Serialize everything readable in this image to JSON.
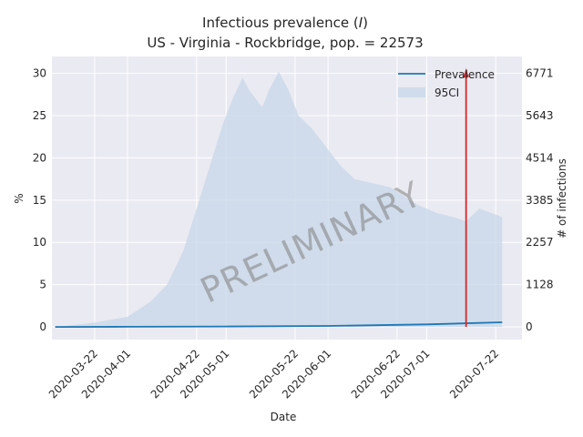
{
  "chart_data": {
    "type": "line",
    "title_line1": "Infectious prevalence (",
    "title_var": "I",
    "title_line1_end": ")",
    "title_line2": "US - Virginia - Rockbridge, pop. = 22573",
    "xlabel": "Date",
    "ylabel_left": "%",
    "ylabel_right": "# of infections",
    "ylim": [
      -1.5,
      32
    ],
    "x_range": [
      "2020-03-09",
      "2020-07-30"
    ],
    "x_ticks": [
      "2020-03-22",
      "2020-04-01",
      "2020-04-22",
      "2020-05-01",
      "2020-05-22",
      "2020-06-01",
      "2020-06-22",
      "2020-07-01",
      "2020-07-22"
    ],
    "y_ticks_left": [
      0,
      5,
      10,
      15,
      20,
      25,
      30
    ],
    "y_ticks_right": [
      "0",
      "1128",
      "2257",
      "3385",
      "4514",
      "5643",
      "6771"
    ],
    "legend": [
      "Prevalence",
      "95CI"
    ],
    "legend_position": "top-right",
    "watermark": "PRELIMINARY",
    "marker_date": "2020-07-13",
    "colors": {
      "line": "#1f77b4",
      "band": "#c7d7e8",
      "marker": "#d62728",
      "grid": "#ffffff",
      "bg": "#eaeaf2"
    },
    "series": [
      {
        "name": "Prevalence",
        "x": [
          "2020-03-10",
          "2020-04-01",
          "2020-05-01",
          "2020-06-01",
          "2020-07-01",
          "2020-07-24"
        ],
        "values": [
          0.0,
          0.02,
          0.05,
          0.12,
          0.3,
          0.55
        ]
      }
    ],
    "ci_band": {
      "name": "95CI",
      "x": [
        "2020-03-10",
        "2020-03-22",
        "2020-04-01",
        "2020-04-08",
        "2020-04-13",
        "2020-04-18",
        "2020-04-22",
        "2020-04-26",
        "2020-04-30",
        "2020-05-03",
        "2020-05-06",
        "2020-05-08",
        "2020-05-12",
        "2020-05-14",
        "2020-05-17",
        "2020-05-20",
        "2020-05-23",
        "2020-05-27",
        "2020-06-01",
        "2020-06-05",
        "2020-06-09",
        "2020-06-20",
        "2020-06-28",
        "2020-07-04",
        "2020-07-09",
        "2020-07-13",
        "2020-07-17",
        "2020-07-24"
      ],
      "lower": [
        0,
        0,
        0,
        0,
        0,
        0,
        0,
        0,
        0,
        0,
        0,
        0,
        0,
        0,
        0,
        0,
        0,
        0,
        0,
        0,
        0,
        0,
        0,
        0,
        0,
        0,
        0,
        0
      ],
      "upper": [
        0,
        0.5,
        1.2,
        3,
        5,
        9,
        14,
        19,
        24,
        27,
        29.5,
        28,
        26,
        28,
        30.2,
        28,
        25,
        23.5,
        21,
        19,
        17.5,
        16.5,
        14.5,
        13.5,
        13,
        12.5,
        14,
        13
      ]
    }
  }
}
